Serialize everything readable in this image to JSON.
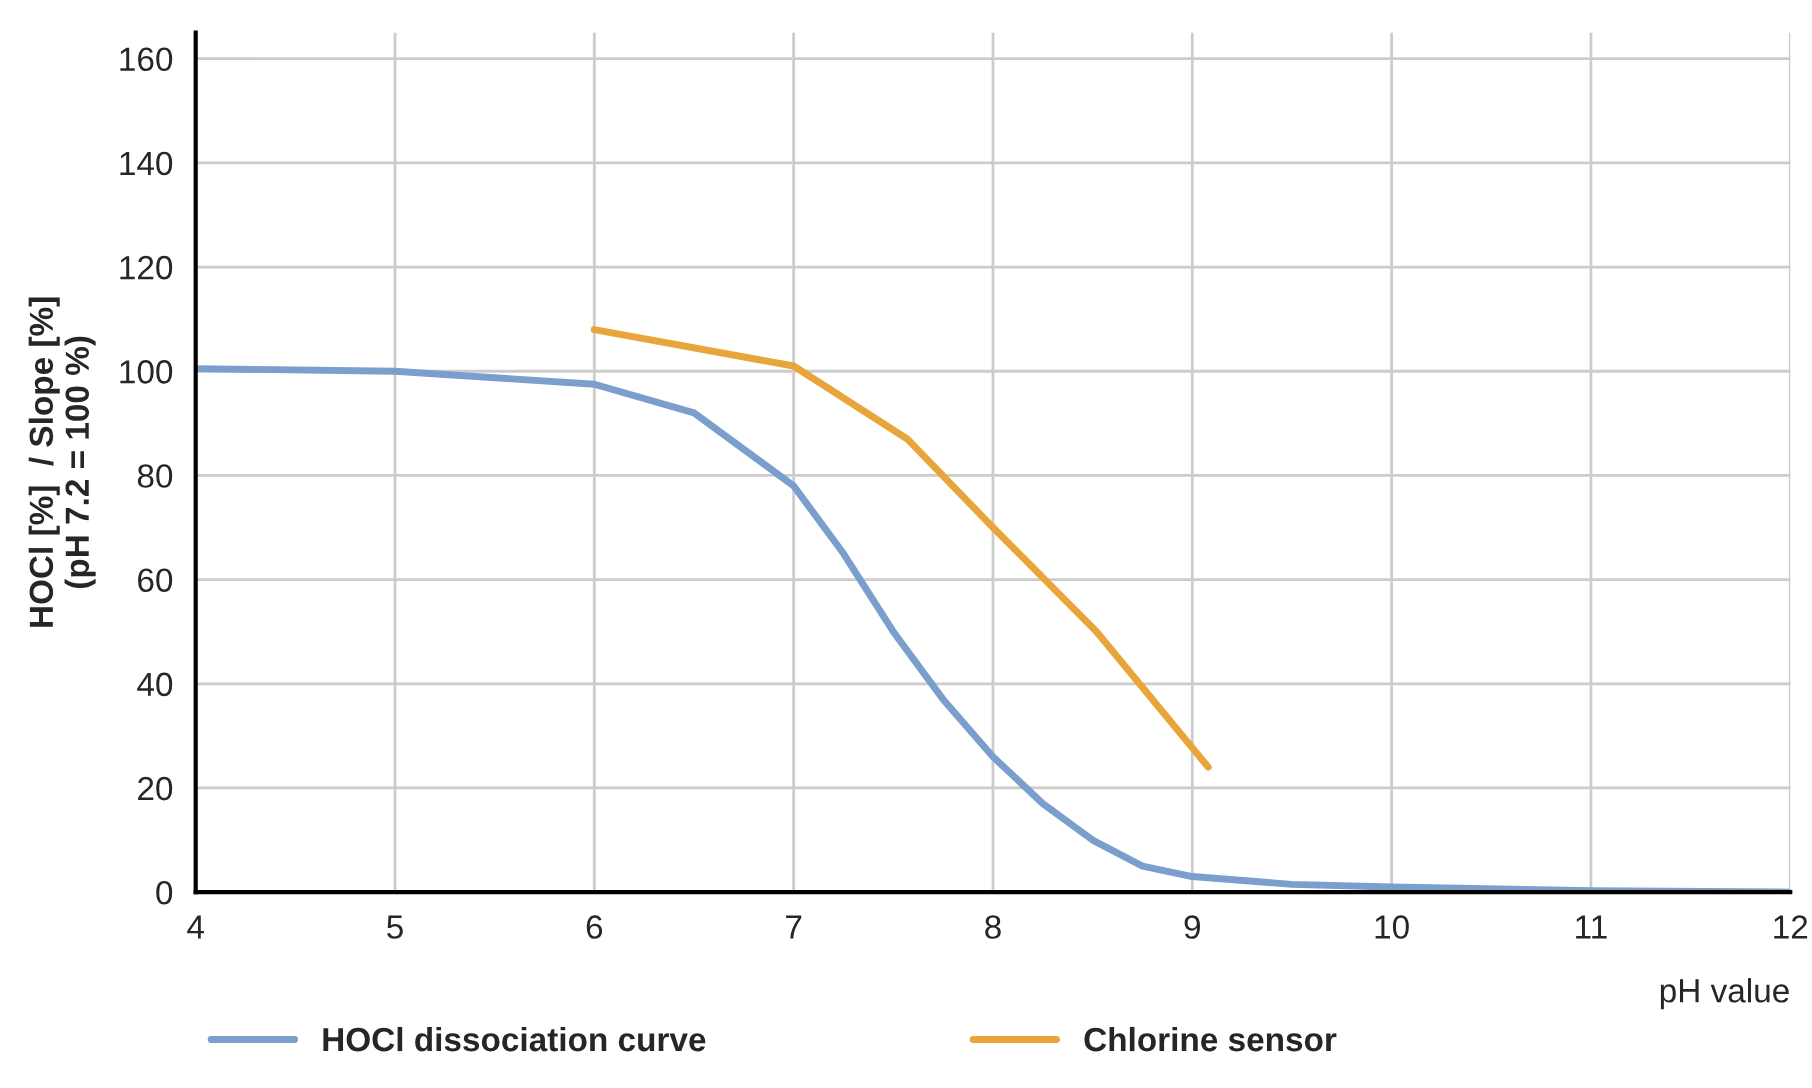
{
  "chart_data": {
    "type": "line",
    "xlabel": "pH value",
    "ylabel": "HOCl [%]  / Slope [%]\n(pH 7.2 = 100 %)",
    "xlim": [
      4,
      12
    ],
    "xticks": [
      4,
      5,
      6,
      7,
      8,
      9,
      10,
      11,
      12
    ],
    "ylim": [
      0,
      165
    ],
    "yticks": [
      0,
      20,
      40,
      60,
      80,
      100,
      120,
      140,
      160
    ],
    "grid": true,
    "legend": "bottom",
    "marker": "none",
    "line_style": "solid",
    "series": [
      {
        "name": "HOCl dissociation curve",
        "color": "#7b9fcc",
        "x": [
          4,
          5,
          6,
          6.5,
          7,
          7.25,
          7.5,
          7.75,
          8,
          8.25,
          8.5,
          8.75,
          9,
          9.5,
          10,
          11,
          12
        ],
        "values": [
          100.5,
          100,
          97.5,
          92,
          78,
          65,
          50,
          37,
          26,
          17,
          10,
          5,
          3,
          1.5,
          1,
          0.3,
          0
        ]
      },
      {
        "name": "Chlorine sensor",
        "color": "#e8a53c",
        "x": [
          6,
          7,
          7.57,
          8,
          8.52,
          9.08
        ],
        "values": [
          108,
          101,
          87,
          70,
          50,
          24
        ]
      }
    ]
  }
}
